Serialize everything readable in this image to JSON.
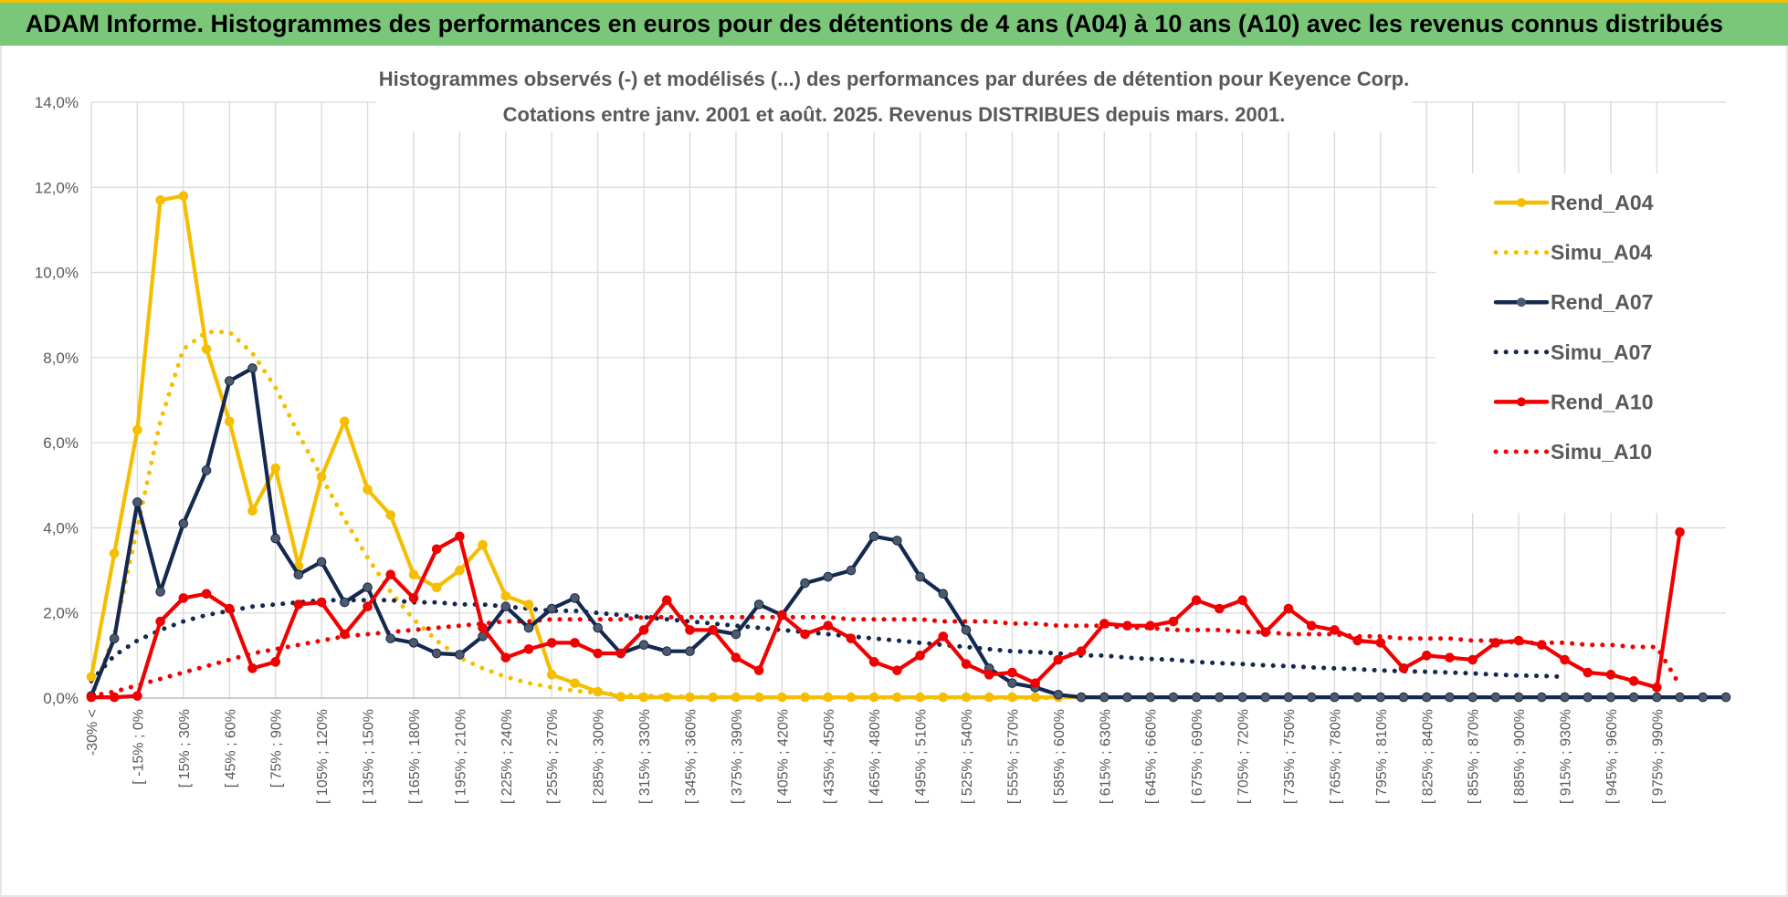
{
  "banner": {
    "title": "ADAM Informe. Histogrammes des performances en euros pour des détentions de 4 ans (A04) à 10 ans (A10) avec les revenus connus distribués"
  },
  "chart_data": {
    "type": "line",
    "title": "Histogrammes observés (-) et modélisés (...) des performances par durées de détention pour Keyence Corp.",
    "subtitle": "Cotations entre janv. 2001 et août. 2025. Revenus DISTRIBUES depuis mars. 2001.",
    "xlabel": "",
    "ylabel": "",
    "ylim": [
      0,
      14
    ],
    "y_ticks": [
      "0,0%",
      "2,0%",
      "4,0%",
      "6,0%",
      "8,0%",
      "10,0%",
      "12,0%",
      "14,0%"
    ],
    "x_tick_labels": [
      "-30% <",
      "[ -15% ; 0%",
      "[ 15% ; 30%",
      "[ 45% ; 60%",
      "[ 75% ; 90%",
      "[ 105% ; 120%",
      "[ 135% ; 150%",
      "[ 165% ; 180%",
      "[ 195% ; 210%",
      "[ 225% ; 240%",
      "[ 255% ; 270%",
      "[ 285% ; 300%",
      "[ 315% ; 330%",
      "[ 345% ; 360%",
      "[ 375% ; 390%",
      "[ 405% ; 420%",
      "[ 435% ; 450%",
      "[ 465% ; 480%",
      "[ 495% ; 510%",
      "[ 525% ; 540%",
      "[ 555% ; 570%",
      "[ 585% ; 600%",
      "[ 615% ; 630%",
      "[ 645% ; 660%",
      "[ 675% ; 690%",
      "[ 705% ; 720%",
      "[ 735% ; 750%",
      "[ 765% ; 780%",
      "[ 795% ; 810%",
      "[ 825% ; 840%",
      "[ 855% ; 870%",
      "[ 885% ; 900%",
      "[ 915% ; 930%",
      "[ 945% ; 960%",
      "[ 975% ; 990%"
    ],
    "grid": true,
    "legend_position": "right",
    "series": [
      {
        "name": "Rend_A04",
        "color": "#f5be00",
        "style": "solid",
        "markers": true,
        "values": [
          0.5,
          3.4,
          6.3,
          11.7,
          11.8,
          8.2,
          6.5,
          4.4,
          5.4,
          3.1,
          5.2,
          6.5,
          4.9,
          4.3,
          2.9,
          2.6,
          3.0,
          3.6,
          2.4,
          2.2,
          0.55,
          0.35,
          0.15,
          0.03,
          0.02,
          0.02,
          0.02,
          0.02,
          0.02,
          0.02,
          0.02,
          0.02,
          0.02,
          0.02,
          0.02,
          0.02,
          0.02,
          0.02,
          0.02,
          0.02,
          0.02,
          0.02,
          0.02,
          0.02,
          0.02
        ]
      },
      {
        "name": "Simu_A04",
        "color": "#f5be00",
        "style": "dotted",
        "markers": false,
        "values": [
          0.0,
          1.5,
          4.0,
          6.5,
          8.2,
          8.6,
          8.6,
          8.1,
          7.3,
          6.2,
          5.2,
          4.2,
          3.3,
          2.5,
          1.85,
          1.35,
          0.95,
          0.7,
          0.5,
          0.35,
          0.25,
          0.17,
          0.12,
          0.08,
          0.06,
          0.04,
          0.03,
          0.02,
          0.02,
          0.01,
          0.01,
          0.01,
          0.01,
          0.01,
          0.01,
          0.01,
          0.01,
          0.01,
          0.01,
          0.01,
          0.0,
          0.0,
          0.0
        ]
      },
      {
        "name": "Rend_A07",
        "color": "#142850",
        "style": "solid",
        "markers": true,
        "values": [
          0.05,
          1.4,
          4.6,
          2.5,
          4.1,
          5.35,
          7.45,
          7.75,
          3.75,
          2.9,
          3.2,
          2.25,
          2.6,
          1.4,
          1.3,
          1.05,
          1.02,
          1.45,
          2.15,
          1.65,
          2.1,
          2.35,
          1.65,
          1.05,
          1.25,
          1.1,
          1.1,
          1.6,
          1.5,
          2.2,
          1.95,
          2.7,
          2.85,
          3.0,
          3.8,
          3.7,
          2.85,
          2.45,
          1.6,
          0.7,
          0.35,
          0.25,
          0.08,
          0.02,
          0.02,
          0.02,
          0.02,
          0.02,
          0.02,
          0.02,
          0.02,
          0.02,
          0.02,
          0.02,
          0.02,
          0.02,
          0.02,
          0.02,
          0.02,
          0.02,
          0.02,
          0.02,
          0.02,
          0.02,
          0.02,
          0.02,
          0.02,
          0.02,
          0.02,
          0.02,
          0.02,
          0.02
        ]
      },
      {
        "name": "Simu_A07",
        "color": "#142850",
        "style": "dotted",
        "markers": false,
        "values": [
          0.4,
          1.0,
          1.35,
          1.6,
          1.8,
          1.95,
          2.05,
          2.15,
          2.2,
          2.25,
          2.3,
          2.3,
          2.3,
          2.3,
          2.25,
          2.25,
          2.2,
          2.2,
          2.15,
          2.1,
          2.05,
          2.05,
          2.0,
          1.95,
          1.9,
          1.85,
          1.8,
          1.75,
          1.7,
          1.65,
          1.6,
          1.55,
          1.5,
          1.45,
          1.4,
          1.35,
          1.3,
          1.25,
          1.2,
          1.15,
          1.1,
          1.08,
          1.05,
          1.0,
          1.0,
          0.95,
          0.92,
          0.9,
          0.85,
          0.82,
          0.8,
          0.77,
          0.75,
          0.72,
          0.7,
          0.68,
          0.65,
          0.63,
          0.62,
          0.6,
          0.58,
          0.55,
          0.53,
          0.52,
          0.5
        ]
      },
      {
        "name": "Rend_A10",
        "color": "#f00000",
        "style": "solid",
        "markers": true,
        "values": [
          0.02,
          0.02,
          0.05,
          1.8,
          2.35,
          2.45,
          2.1,
          0.7,
          0.85,
          2.2,
          2.25,
          1.5,
          2.15,
          2.9,
          2.35,
          3.5,
          3.8,
          1.65,
          0.95,
          1.15,
          1.3,
          1.3,
          1.05,
          1.05,
          1.6,
          2.3,
          1.6,
          1.6,
          0.95,
          0.65,
          1.95,
          1.5,
          1.7,
          1.4,
          0.85,
          0.65,
          1.0,
          1.45,
          0.8,
          0.55,
          0.6,
          0.35,
          0.9,
          1.1,
          1.75,
          1.7,
          1.7,
          1.8,
          2.3,
          2.1,
          2.3,
          1.55,
          2.1,
          1.7,
          1.6,
          1.35,
          1.3,
          0.7,
          1.0,
          0.95,
          0.9,
          1.3,
          1.35,
          1.25,
          0.9,
          0.6,
          0.55,
          0.4,
          0.25,
          3.9
        ]
      },
      {
        "name": "Simu_A10",
        "color": "#f00000",
        "style": "dotted",
        "markers": false,
        "values": [
          0.05,
          0.15,
          0.3,
          0.45,
          0.6,
          0.75,
          0.9,
          1.05,
          1.15,
          1.25,
          1.35,
          1.45,
          1.5,
          1.55,
          1.6,
          1.65,
          1.7,
          1.75,
          1.8,
          1.8,
          1.85,
          1.85,
          1.85,
          1.85,
          1.9,
          1.9,
          1.9,
          1.9,
          1.9,
          1.9,
          1.9,
          1.9,
          1.9,
          1.85,
          1.85,
          1.85,
          1.85,
          1.8,
          1.8,
          1.8,
          1.75,
          1.75,
          1.7,
          1.7,
          1.7,
          1.65,
          1.65,
          1.6,
          1.6,
          1.6,
          1.55,
          1.55,
          1.5,
          1.5,
          1.5,
          1.45,
          1.45,
          1.4,
          1.4,
          1.4,
          1.35,
          1.35,
          1.3,
          1.3,
          1.3,
          1.25,
          1.25,
          1.2,
          1.2,
          0.3
        ]
      }
    ]
  }
}
